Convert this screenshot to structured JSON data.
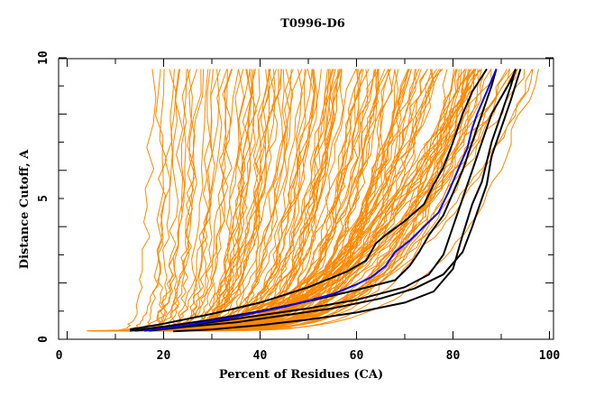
{
  "chart_data": {
    "type": "line",
    "title": "T0996-D6",
    "xlabel": "Percent of Residues (CA)",
    "ylabel": "Distance Cutoff, A",
    "xlim": [
      0,
      100
    ],
    "ylim": [
      0,
      10
    ],
    "x_ticks": [
      "0",
      "20",
      "40",
      "60",
      "80",
      "100"
    ],
    "y_ticks": [
      "0",
      "5",
      "10"
    ],
    "grid": false,
    "legend": "none",
    "colors": {
      "background_models": "#ff8800",
      "highlighted_models": "#000000",
      "reference_model": "#0000ff",
      "frame": "#000000"
    },
    "series": [
      {
        "name": "model-black-1",
        "color": "#000000",
        "x": [
          13,
          20,
          30,
          40,
          50,
          58,
          62,
          64,
          66,
          70,
          74,
          76,
          78,
          80,
          82,
          84,
          87
        ],
        "y": [
          0.35,
          0.55,
          0.9,
          1.3,
          1.85,
          2.4,
          2.8,
          3.4,
          3.7,
          4.2,
          4.8,
          5.5,
          6.1,
          7.0,
          8.0,
          8.8,
          9.6
        ]
      },
      {
        "name": "model-black-2",
        "color": "#000000",
        "x": [
          13,
          20,
          30,
          40,
          50,
          60,
          68,
          71,
          73,
          75,
          78,
          80,
          82,
          84,
          86,
          88,
          89
        ],
        "y": [
          0.3,
          0.45,
          0.7,
          1.0,
          1.35,
          1.75,
          2.1,
          2.6,
          3.1,
          3.7,
          4.4,
          5.2,
          6.0,
          7.0,
          8.0,
          9.0,
          9.6
        ]
      },
      {
        "name": "model-black-3",
        "color": "#000000",
        "x": [
          14,
          20,
          30,
          40,
          50,
          60,
          70,
          75,
          78,
          80,
          82,
          84,
          86,
          88,
          90,
          92,
          93
        ],
        "y": [
          0.3,
          0.4,
          0.6,
          0.85,
          1.1,
          1.4,
          1.85,
          2.3,
          3.0,
          4.0,
          5.0,
          6.0,
          7.0,
          8.0,
          8.6,
          9.2,
          9.6
        ]
      },
      {
        "name": "model-black-4",
        "color": "#000000",
        "x": [
          17,
          25,
          35,
          45,
          55,
          65,
          72,
          78,
          82,
          84,
          86,
          87,
          88,
          90,
          92,
          94
        ],
        "y": [
          0.3,
          0.45,
          0.6,
          0.85,
          1.1,
          1.45,
          1.8,
          2.3,
          3.1,
          4.0,
          5.0,
          5.5,
          6.5,
          7.5,
          8.5,
          9.6
        ]
      },
      {
        "name": "model-black-5",
        "color": "#000000",
        "x": [
          22,
          30,
          40,
          50,
          60,
          70,
          76,
          80,
          82,
          84,
          86,
          88,
          90,
          92,
          93
        ],
        "y": [
          0.28,
          0.35,
          0.5,
          0.7,
          0.95,
          1.3,
          1.7,
          2.5,
          3.7,
          4.8,
          5.6,
          7.0,
          8.0,
          9.0,
          9.6
        ]
      },
      {
        "name": "model-blue-reference",
        "color": "#0000ff",
        "x": [
          16,
          25,
          35,
          45,
          55,
          60,
          63,
          66,
          68,
          71,
          74,
          77,
          79,
          81,
          83,
          84,
          85,
          87,
          89
        ],
        "y": [
          0.3,
          0.5,
          0.8,
          1.15,
          1.6,
          1.95,
          2.2,
          2.6,
          3.1,
          3.5,
          4.0,
          4.5,
          5.2,
          6.0,
          6.8,
          7.5,
          8.0,
          8.8,
          9.6
        ]
      },
      {
        "name": "orange-models-envelope-steep",
        "color": "#ff8800",
        "x": [
          5,
          7,
          10,
          13,
          16,
          20
        ],
        "y": [
          0.35,
          1.0,
          2.0,
          3.5,
          6.0,
          9.6
        ]
      },
      {
        "name": "orange-models-envelope-flat",
        "color": "#ff8800",
        "x": [
          10,
          30,
          50,
          70,
          85,
          93,
          97,
          100
        ],
        "y": [
          0.3,
          0.5,
          0.7,
          1.0,
          1.5,
          2.0,
          3.0,
          9.6
        ]
      }
    ],
    "orange_model_count_estimate": 150
  }
}
